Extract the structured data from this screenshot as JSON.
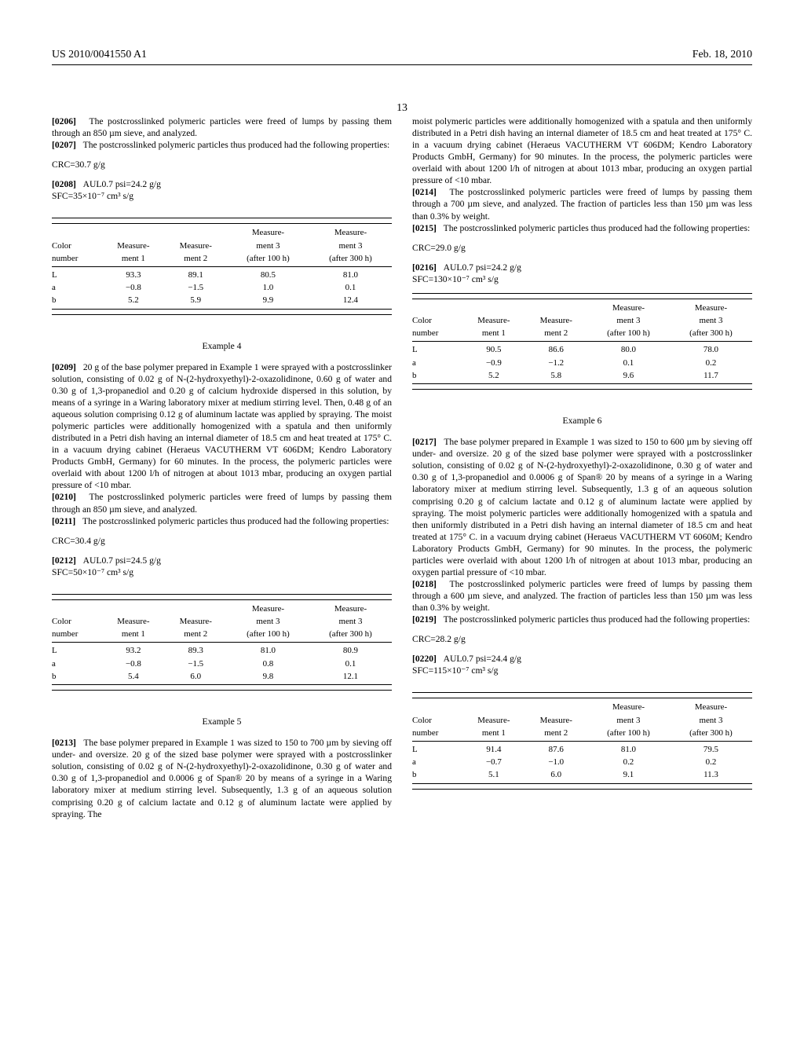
{
  "header": {
    "pub_number": "US 2010/0041550 A1",
    "date": "Feb. 18, 2010",
    "page": "13"
  },
  "left": {
    "p0206_num": "[0206]",
    "p0206": "The postcrosslinked polymeric particles were freed of lumps by passing them through an 850 µm sieve, and analyzed.",
    "p0207_num": "[0207]",
    "p0207": "The postcrosslinked polymeric particles thus produced had the following properties:",
    "crc3": "CRC=30.7 g/g",
    "p0208_num": "[0208]",
    "p0208_line1": "AUL0.7 psi=24.2 g/g",
    "p0208_line2": "SFC=35×10⁻⁷ cm³ s/g",
    "table3": {
      "head_col1_r1": "Color",
      "head_col1_r2": "number",
      "head_col2_r1": "Measure-",
      "head_col2_r2": "ment 1",
      "head_col3_r1": "Measure-",
      "head_col3_r2": "ment 2",
      "head_col4_r1": "Measure-",
      "head_col4_r2": "ment 3",
      "head_col4_r3": "(after 100 h)",
      "head_col5_r1": "Measure-",
      "head_col5_r2": "ment 3",
      "head_col5_r3": "(after 300 h)",
      "r1c1": "L",
      "r1c2": "93.3",
      "r1c3": "89.1",
      "r1c4": "80.5",
      "r1c5": "81.0",
      "r2c1": "a",
      "r2c2": "−0.8",
      "r2c3": "−1.5",
      "r2c4": "1.0",
      "r2c5": "0.1",
      "r3c1": "b",
      "r3c2": "5.2",
      "r3c3": "5.9",
      "r3c4": "9.9",
      "r3c5": "12.4"
    },
    "ex4_title": "Example 4",
    "p0209_num": "[0209]",
    "p0209": "20 g of the base polymer prepared in Example 1 were sprayed with a postcrosslinker solution, consisting of 0.02 g of N-(2-hydroxyethyl)-2-oxazolidinone, 0.60 g of water and 0.30 g of 1,3-propanediol and 0.20 g of calcium hydroxide dispersed in this solution, by means of a syringe in a Waring laboratory mixer at medium stirring level. Then, 0.48 g of an aqueous solution comprising 0.12 g of aluminum lactate was applied by spraying. The moist polymeric particles were additionally homogenized with a spatula and then uniformly distributed in a Petri dish having an internal diameter of 18.5 cm and heat treated at 175° C. in a vacuum drying cabinet (Heraeus VACUTHERM VT 606DM; Kendro Laboratory Products GmbH, Germany) for 60 minutes. In the process, the polymeric particles were overlaid with about 1200 l/h of nitrogen at about 1013 mbar, producing an oxygen partial pressure of <10 mbar.",
    "p0210_num": "[0210]",
    "p0210": "The postcrosslinked polymeric particles were freed of lumps by passing them through an 850 µm sieve, and analyzed.",
    "p0211_num": "[0211]",
    "p0211": "The postcrosslinked polymeric particles thus produced had the following properties:",
    "crc4": "CRC=30.4 g/g",
    "p0212_num": "[0212]",
    "p0212_line1": "AUL0.7 psi=24.5 g/g",
    "p0212_line2": "SFC=50×10⁻⁷ cm³ s/g",
    "table4": {
      "r1c1": "L",
      "r1c2": "93.2",
      "r1c3": "89.3",
      "r1c4": "81.0",
      "r1c5": "80.9",
      "r2c1": "a",
      "r2c2": "−0.8",
      "r2c3": "−1.5",
      "r2c4": "0.8",
      "r2c5": "0.1",
      "r3c1": "b",
      "r3c2": "5.4",
      "r3c3": "6.0",
      "r3c4": "9.8",
      "r3c5": "12.1"
    },
    "ex5_title": "Example 5",
    "p0213_num": "[0213]",
    "p0213": "The base polymer prepared in Example 1 was sized to 150 to 700 µm by sieving off under- and oversize. 20 g of the sized base polymer were sprayed with a postcrosslinker solution, consisting of 0.02 g of N-(2-hydroxyethyl)-2-oxazolidinone, 0.30 g of water and 0.30 g of 1,3-propanediol and 0.0006 g of Span® 20 by means of a syringe in a Waring laboratory mixer at medium stirring level. Subsequently, 1.3 g of an aqueous solution comprising 0.20 g of calcium lactate and 0.12 g of aluminum lactate were applied by spraying. The"
  },
  "right": {
    "p0213_cont": "moist polymeric particles were additionally homogenized with a spatula and then uniformly distributed in a Petri dish having an internal diameter of 18.5 cm and heat treated at 175° C. in a vacuum drying cabinet (Heraeus VACUTHERM VT 606DM; Kendro Laboratory Products GmbH, Germany) for 90 minutes. In the process, the polymeric particles were overlaid with about 1200 l/h of nitrogen at about 1013 mbar, producing an oxygen partial pressure of <10 mbar.",
    "p0214_num": "[0214]",
    "p0214": "The postcrosslinked polymeric particles were freed of lumps by passing them through a 700 µm sieve, and analyzed. The fraction of particles less than 150 µm was less than 0.3% by weight.",
    "p0215_num": "[0215]",
    "p0215": "The postcrosslinked polymeric particles thus produced had the following properties:",
    "crc5": "CRC=29.0 g/g",
    "p0216_num": "[0216]",
    "p0216_line1": "AUL0.7 psi=24.2 g/g",
    "p0216_line2": "SFC=130×10⁻⁷ cm³ s/g",
    "table5": {
      "r1c1": "L",
      "r1c2": "90.5",
      "r1c3": "86.6",
      "r1c4": "80.0",
      "r1c5": "78.0",
      "r2c1": "a",
      "r2c2": "−0.9",
      "r2c3": "−1.2",
      "r2c4": "0.1",
      "r2c5": "0.2",
      "r3c1": "b",
      "r3c2": "5.2",
      "r3c3": "5.8",
      "r3c4": "9.6",
      "r3c5": "11.7"
    },
    "ex6_title": "Example 6",
    "p0217_num": "[0217]",
    "p0217": "The base polymer prepared in Example 1 was sized to 150 to 600 µm by sieving off under- and oversize. 20 g of the sized base polymer were sprayed with a postcrosslinker solution, consisting of 0.02 g of N-(2-hydroxyethyl)-2-oxazolidinone, 0.30 g of water and 0.30 g of 1,3-propanediol and 0.0006 g of Span® 20 by means of a syringe in a Waring laboratory mixer at medium stirring level. Subsequently, 1.3 g of an aqueous solution comprising 0.20 g of calcium lactate and 0.12 g of aluminum lactate were applied by spraying. The moist polymeric particles were additionally homogenized with a spatula and then uniformly distributed in a Petri dish having an internal diameter of 18.5 cm and heat treated at 175° C. in a vacuum drying cabinet (Heraeus VACUTHERM VT 6060M; Kendro Laboratory Products GmbH, Germany) for 90 minutes. In the process, the polymeric particles were overlaid with about 1200 l/h of nitrogen at about 1013 mbar, producing an oxygen partial pressure of <10 mbar.",
    "p0218_num": "[0218]",
    "p0218": "The postcrosslinked polymeric particles were freed of lumps by passing them through a 600 µm sieve, and analyzed. The fraction of particles less than 150 µm was less than 0.3% by weight.",
    "p0219_num": "[0219]",
    "p0219": "The postcrosslinked polymeric particles thus produced had the following properties:",
    "crc6": "CRC=28.2 g/g",
    "p0220_num": "[0220]",
    "p0220_line1": "AUL0.7 psi=24.4 g/g",
    "p0220_line2": "SFC=115×10⁻⁷ cm³ s/g",
    "table6": {
      "r1c1": "L",
      "r1c2": "91.4",
      "r1c3": "87.6",
      "r1c4": "81.0",
      "r1c5": "79.5",
      "r2c1": "a",
      "r2c2": "−0.7",
      "r2c3": "−1.0",
      "r2c4": "0.2",
      "r2c5": "0.2",
      "r3c1": "b",
      "r3c2": "5.1",
      "r3c3": "6.0",
      "r3c4": "9.1",
      "r3c5": "11.3"
    }
  }
}
